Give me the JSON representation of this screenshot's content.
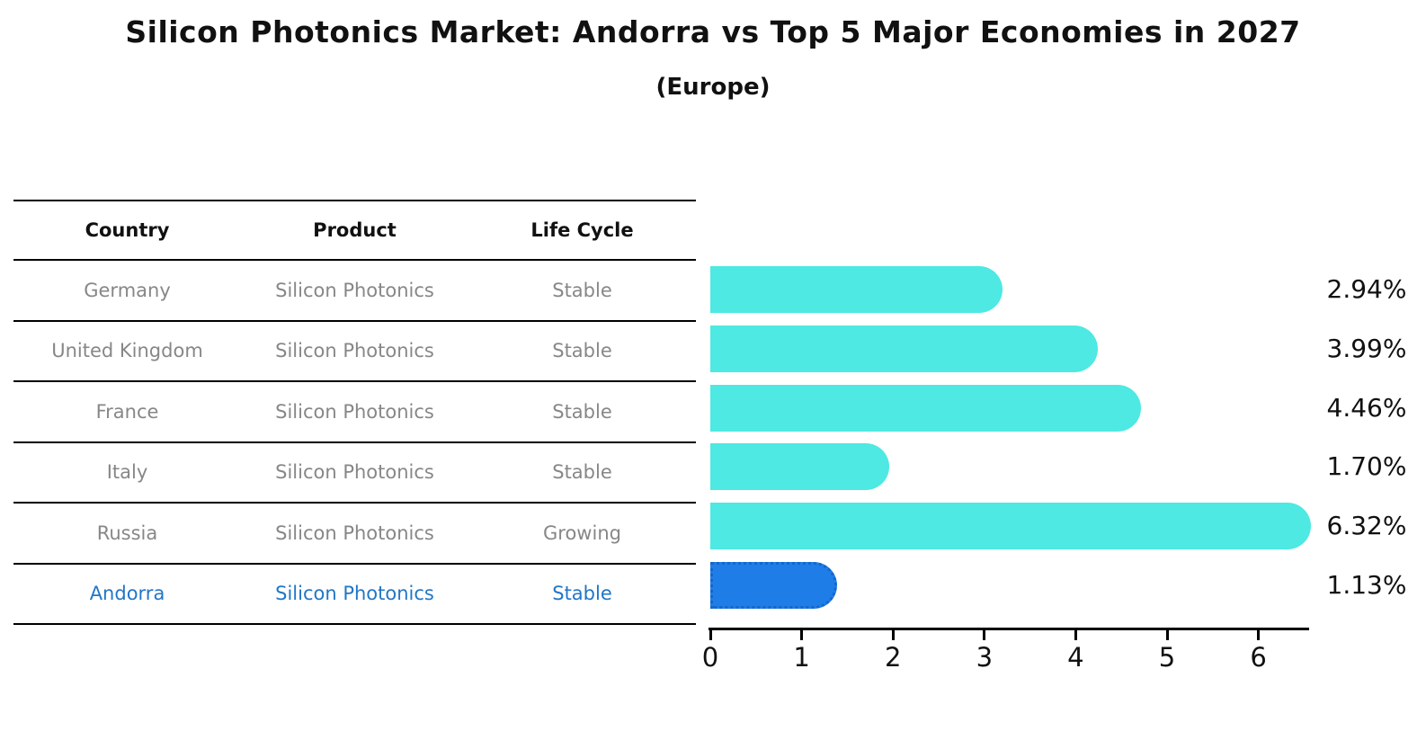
{
  "header": {
    "title": "Silicon Photonics Market: Andorra vs Top 5 Major Economies in 2027",
    "subtitle": "(Europe)"
  },
  "table": {
    "columns": [
      "Country",
      "Product",
      "Life Cycle"
    ],
    "rows": [
      {
        "country": "Germany",
        "product": "Silicon Photonics",
        "life_cycle": "Stable",
        "highlight": false
      },
      {
        "country": "United Kingdom",
        "product": "Silicon Photonics",
        "life_cycle": "Stable",
        "highlight": false
      },
      {
        "country": "France",
        "product": "Silicon Photonics",
        "life_cycle": "Stable",
        "highlight": false
      },
      {
        "country": "Italy",
        "product": "Silicon Photonics",
        "life_cycle": "Stable",
        "highlight": false
      },
      {
        "country": "Russia",
        "product": "Silicon Photonics",
        "life_cycle": "Growing",
        "highlight": false
      },
      {
        "country": "Andorra",
        "product": "Silicon Photonics",
        "life_cycle": "Stable",
        "highlight": true
      }
    ]
  },
  "chart_data": {
    "type": "bar",
    "orientation": "horizontal",
    "title": "Silicon Photonics Market: Andorra vs Top 5 Major Economies in 2027 (Europe)",
    "categories": [
      "Germany",
      "United Kingdom",
      "France",
      "Italy",
      "Russia",
      "Andorra"
    ],
    "values": [
      2.94,
      3.99,
      4.46,
      1.7,
      6.32,
      1.13
    ],
    "value_labels": [
      "2.94%",
      "3.99%",
      "4.46%",
      "1.70%",
      "6.32%",
      "1.13%"
    ],
    "x_ticks": [
      0,
      1,
      2,
      3,
      4,
      5,
      6
    ],
    "xlim": [
      0,
      6.6
    ],
    "xlabel": "",
    "ylabel": "",
    "grid": false,
    "legend": "none",
    "highlight_index": 5
  },
  "colors": {
    "bar": "#4DE9E2",
    "highlight_bar": "#1E7DE6",
    "highlight_border": "#1566CC",
    "highlight_text": "#2176C7",
    "row_text": "#878787",
    "header_text": "#111111",
    "line": "#000000"
  }
}
